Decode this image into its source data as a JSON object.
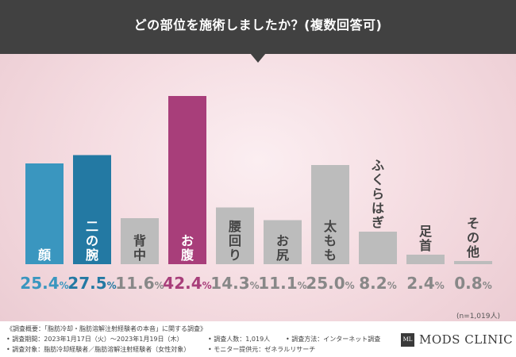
{
  "header": {
    "title": "どの部位を施術しましたか？(複数回答可)"
  },
  "chart_data": {
    "type": "bar",
    "title": "どの部位を施術しましたか？(複数回答可)",
    "categories": [
      "顔",
      "二の腕",
      "背中",
      "お腹",
      "腰回り",
      "お尻",
      "太もも",
      "ふくらはぎ",
      "足首",
      "その他"
    ],
    "values": [
      25.4,
      27.5,
      11.6,
      42.4,
      14.3,
      11.1,
      25.0,
      8.2,
      2.4,
      0.8
    ],
    "value_labels": [
      "25.4%",
      "27.5%",
      "11.6%",
      "42.4%",
      "14.3%",
      "11.1%",
      "25.0%",
      "8.2%",
      "2.4%",
      "0.8%"
    ],
    "unit": "%",
    "ylim": [
      0,
      42.4
    ],
    "grid": false,
    "legend": "none",
    "bar_colors": [
      "#3a96bf",
      "#2379a3",
      "#bcbcbc",
      "#a83e7a",
      "#bcbcbc",
      "#bcbcbc",
      "#bcbcbc",
      "#bcbcbc",
      "#bcbcbc",
      "#bcbcbc"
    ],
    "label_colors": [
      "#3a96bf",
      "#2379a3",
      "#888888",
      "#a83e7a",
      "#888888",
      "#888888",
      "#888888",
      "#888888",
      "#888888",
      "#888888"
    ],
    "bar_text_colors": [
      "#ffffff",
      "#ffffff",
      "#444444",
      "#ffffff",
      "#444444",
      "#444444",
      "#444444",
      "#444444",
      "#444444",
      "#444444"
    ]
  },
  "sample_note": "(n=1,019人)",
  "footer": {
    "title": "《調査概要：「脂肪冷却・脂肪溶解注射経験者の本音」に関する調査》",
    "period": "• 調査期間：2023年1月17日（火）〜2023年1月19日（木）",
    "target": "• 調査対象：脂肪冷却経験者／脂肪溶解注射経験者（女性対象）",
    "count": "• 調査人数：1,019人",
    "provider": "• モニター提供元：ゼネラルリサーチ",
    "method": "• 調査方法：インターネット調査",
    "brand_icon": "ML",
    "brand_name": "MODS CLINIC"
  }
}
